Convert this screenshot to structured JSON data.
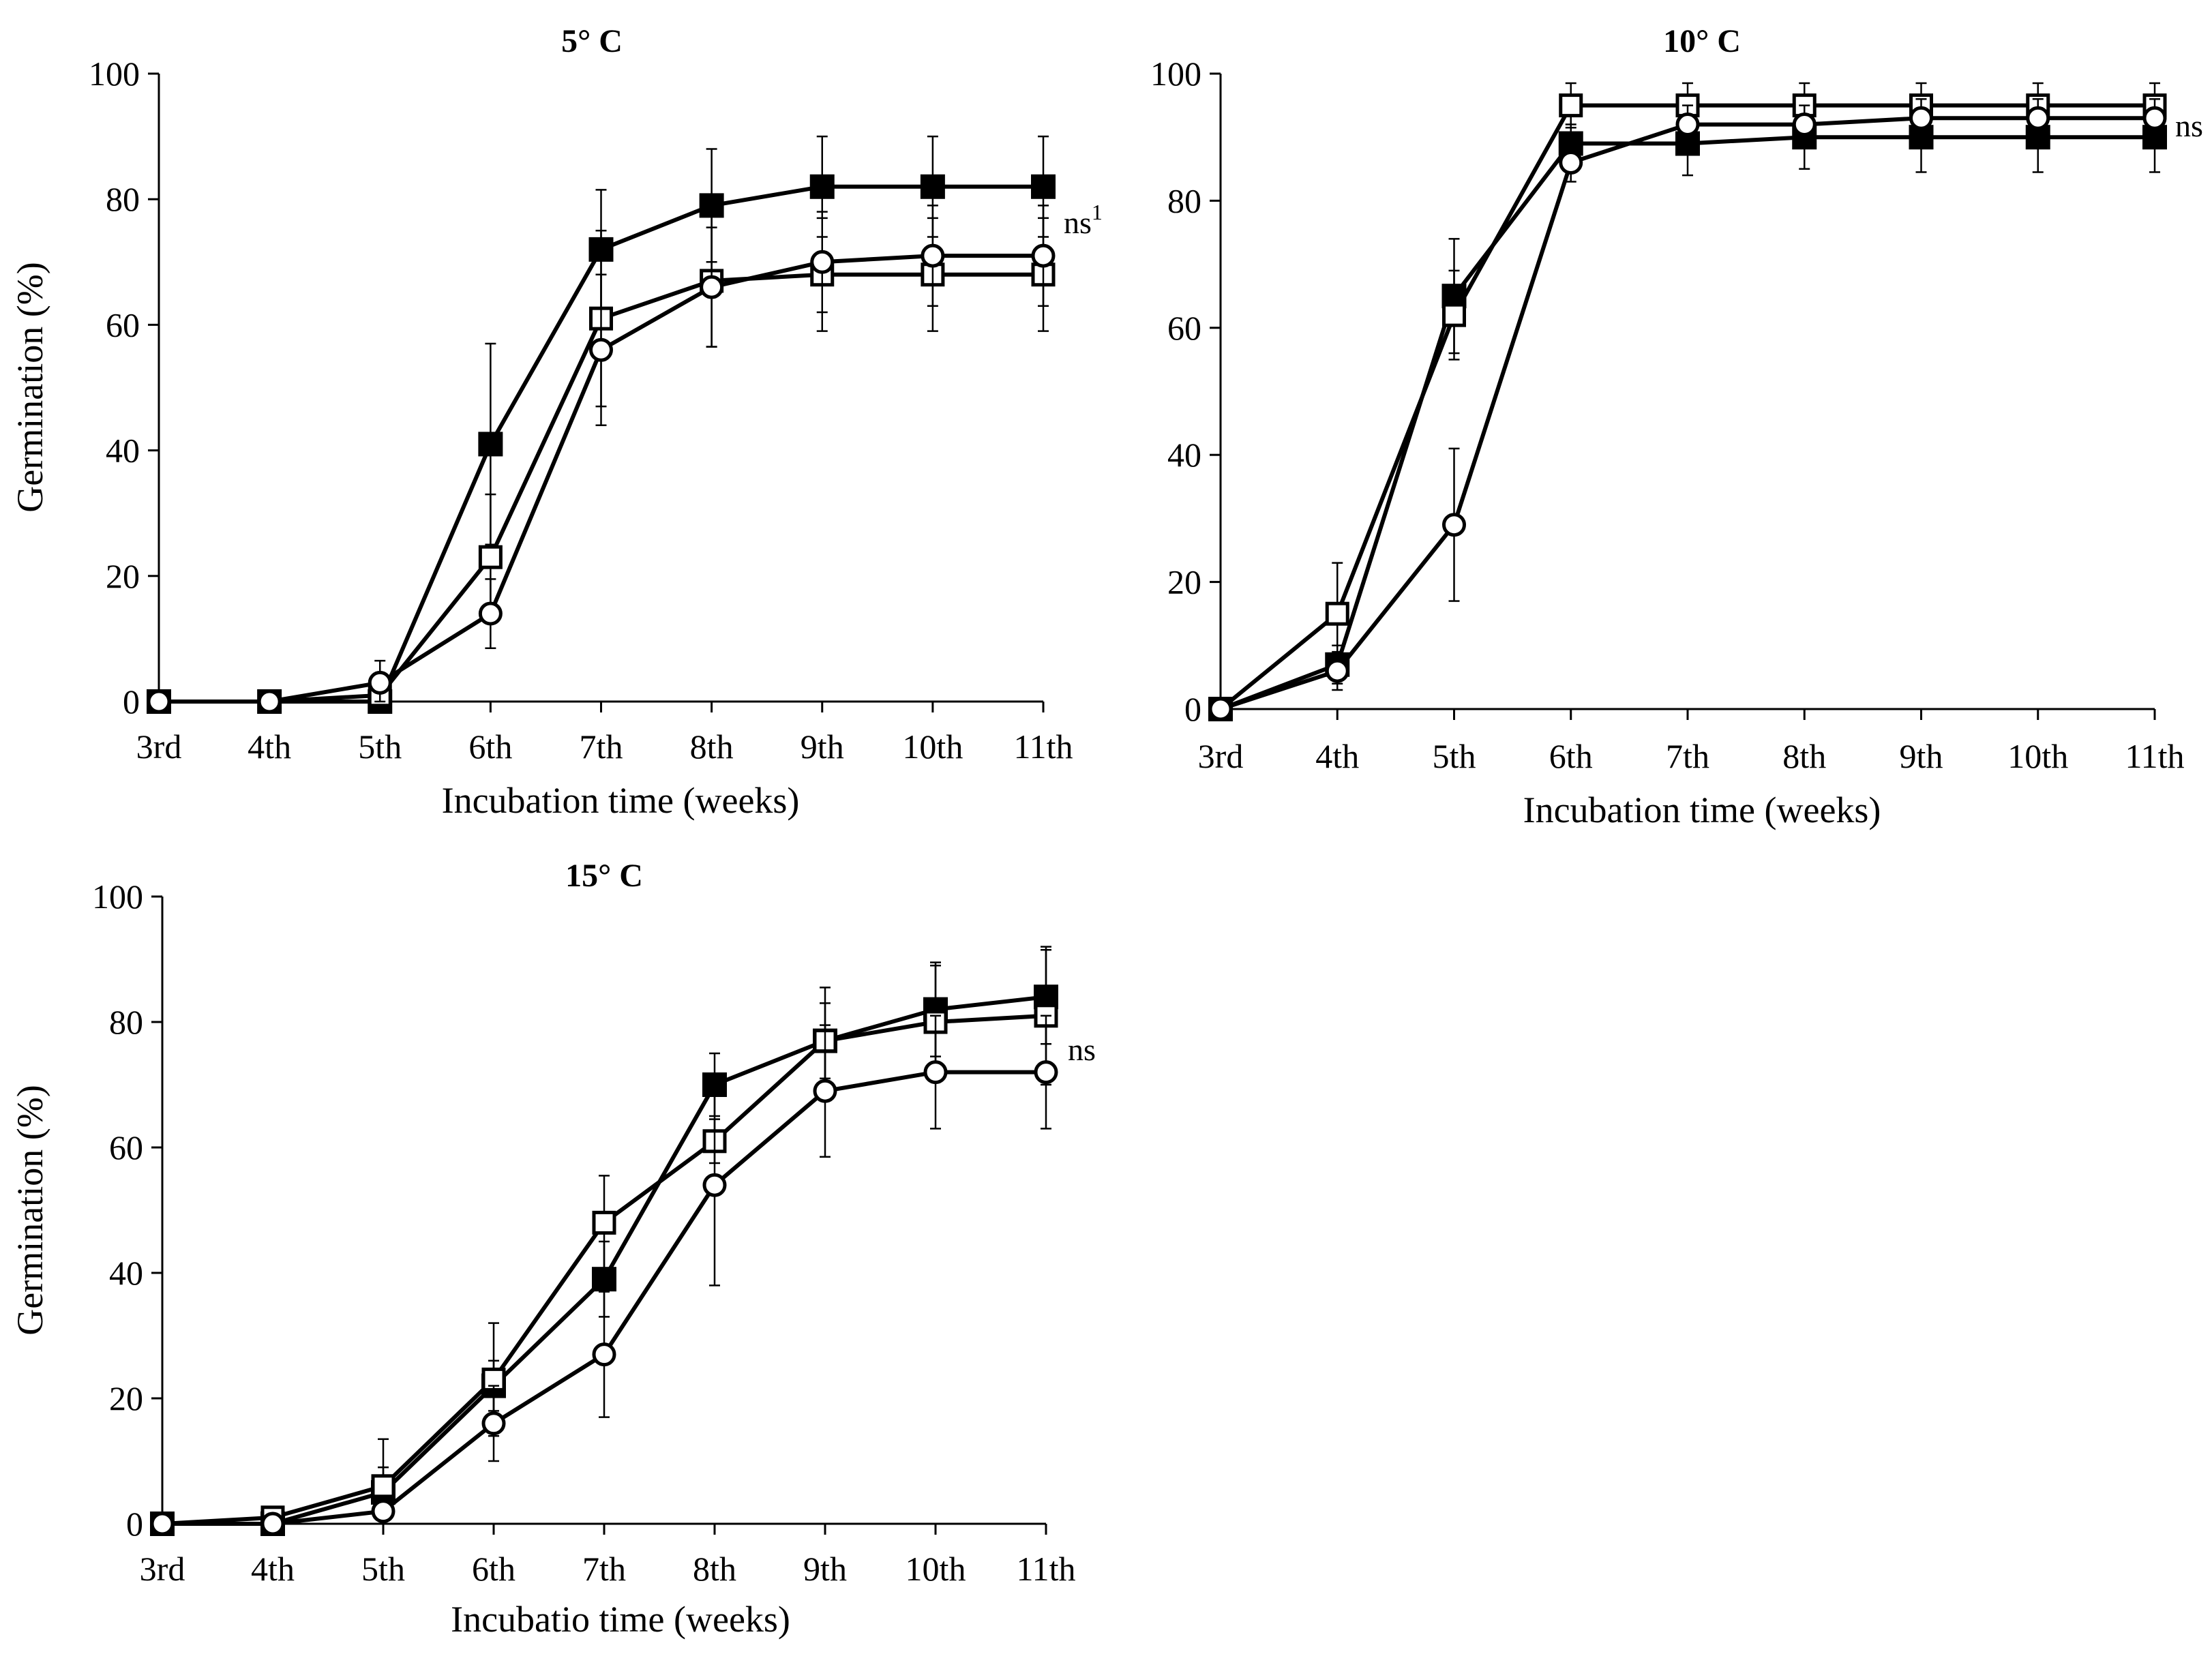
{
  "chart_data": [
    {
      "type": "line",
      "title": "5° C",
      "xlabel": "Incubation time (weeks)",
      "ylabel": "Germination  (%)",
      "categories": [
        "3rd",
        "4th",
        "5th",
        "6th",
        "7th",
        "8th",
        "9th",
        "10th",
        "11th"
      ],
      "ylim": [
        0,
        100
      ],
      "yticks": [
        0,
        20,
        40,
        60,
        80,
        100
      ],
      "annotation": {
        "text": "ns",
        "superscript": "1"
      },
      "series": [
        {
          "marker": "filled-square",
          "values": [
            0,
            0,
            0,
            41,
            72,
            79,
            82,
            82,
            82
          ],
          "errors": [
            0,
            0,
            0,
            16,
            9.5,
            9,
            8,
            8,
            8
          ]
        },
        {
          "marker": "open-square",
          "values": [
            0,
            0,
            1,
            23,
            61,
            67,
            68,
            68,
            68
          ],
          "errors": [
            0,
            0,
            0.5,
            10,
            14,
            10.5,
            9,
            9,
            9
          ]
        },
        {
          "marker": "open-circle",
          "values": [
            0,
            0,
            3,
            14,
            56,
            66,
            70,
            71,
            71
          ],
          "errors": [
            0,
            0,
            3.5,
            5.5,
            12,
            9.5,
            8,
            8,
            8
          ]
        }
      ]
    },
    {
      "type": "line",
      "title": "10° C",
      "xlabel": "Incubation time (weeks)",
      "ylabel": "",
      "categories": [
        "3rd",
        "4th",
        "5th",
        "6th",
        "7th",
        "8th",
        "9th",
        "10th",
        "11th"
      ],
      "ylim": [
        0,
        100
      ],
      "yticks": [
        0,
        20,
        40,
        60,
        80,
        100
      ],
      "annotation": {
        "text": "ns",
        "superscript": ""
      },
      "series": [
        {
          "marker": "filled-square",
          "values": [
            0,
            7,
            65,
            89,
            89,
            90,
            90,
            90,
            90
          ],
          "errors": [
            0,
            3,
            9,
            3,
            5,
            5,
            5.5,
            5.5,
            5.5
          ]
        },
        {
          "marker": "open-square",
          "values": [
            0,
            15,
            62,
            95,
            95,
            95,
            95,
            95,
            95
          ],
          "errors": [
            0,
            8,
            7,
            3.5,
            3.5,
            3.5,
            3.5,
            3.5,
            3.5
          ]
        },
        {
          "marker": "open-circle",
          "values": [
            0,
            6,
            29,
            86,
            92,
            92,
            93,
            93,
            93
          ],
          "errors": [
            0,
            3,
            12,
            3,
            3,
            3,
            3,
            3,
            3
          ]
        }
      ]
    },
    {
      "type": "line",
      "title": "15° C",
      "xlabel": "Incubatio time (weeks)",
      "ylabel": "Germination (%)",
      "categories": [
        "3rd",
        "4th",
        "5th",
        "6th",
        "7th",
        "8th",
        "9th",
        "10th",
        "11th"
      ],
      "ylim": [
        0,
        100
      ],
      "yticks": [
        0,
        20,
        40,
        60,
        80,
        100
      ],
      "annotation": {
        "text": "ns",
        "superscript": ""
      },
      "series": [
        {
          "marker": "filled-square",
          "values": [
            0,
            0,
            5,
            22,
            39,
            70,
            77,
            82,
            84
          ],
          "errors": [
            0,
            0,
            4,
            4,
            6,
            5,
            6,
            7.5,
            7.5
          ]
        },
        {
          "marker": "open-square",
          "values": [
            0,
            1,
            6,
            23,
            48,
            61,
            77,
            80,
            81
          ],
          "errors": [
            0,
            0,
            7.5,
            9,
            7.5,
            3.5,
            8.5,
            9,
            11
          ]
        },
        {
          "marker": "open-circle",
          "values": [
            0,
            0,
            2,
            16,
            27,
            54,
            69,
            72,
            72
          ],
          "errors": [
            0,
            0,
            1,
            6,
            10,
            16,
            10.5,
            9,
            9
          ]
        }
      ]
    }
  ]
}
